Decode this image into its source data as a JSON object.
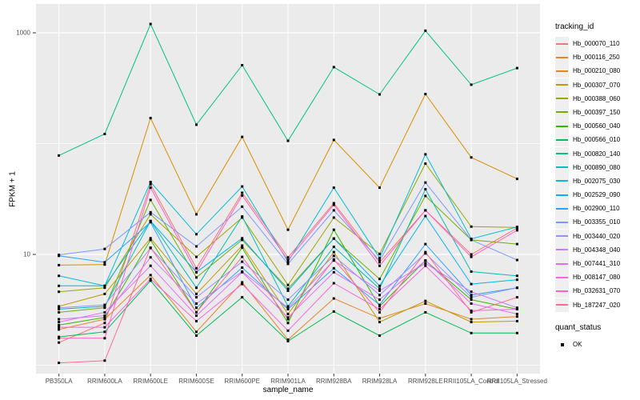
{
  "chart_data": {
    "type": "line",
    "xlabel": "sample_name",
    "ylabel": "FPKM + 1",
    "y_scale": "log10",
    "y_ticks": [
      10,
      1000
    ],
    "y_minor_gridlines": [
      1,
      100
    ],
    "ylim": [
      0.85,
      1600
    ],
    "grid": "major-and-minor, white on grey panel",
    "legend_position": "right",
    "point_marker": "small black square (quant_status OK)",
    "categories": [
      "PB350LA",
      "RRIM600LA",
      "RRIM600LE",
      "RRIM600SE",
      "RRIM600PE",
      "RRIM901LA",
      "RRIM928BA",
      "RRIM928LA",
      "RRIM928LE",
      "RRII105LA_Control",
      "RRII105LA_Stressed"
    ],
    "series": [
      {
        "name": "Hb_000070_110",
        "color": "#F8766D",
        "values": [
          1.6,
          2.4,
          43,
          7.5,
          36,
          9.4,
          29,
          8.5,
          25,
          10,
          17.3
        ]
      },
      {
        "name": "Hb_000116_250",
        "color": "#E88526",
        "values": [
          2.1,
          2.6,
          6.5,
          2.0,
          5.6,
          1.7,
          4.0,
          2.65,
          3.6,
          2.6,
          2.75
        ]
      },
      {
        "name": "Hb_000210_080",
        "color": "#D89000",
        "values": [
          8.0,
          8.1,
          170,
          23,
          115,
          16.7,
          108,
          40,
          280,
          75,
          48
        ]
      },
      {
        "name": "Hb_000307_070",
        "color": "#C09B00",
        "values": [
          3.4,
          4.4,
          14,
          4.4,
          12,
          2.9,
          10.5,
          2.45,
          3.8,
          2.45,
          2.5
        ]
      },
      {
        "name": "Hb_000388_060",
        "color": "#9DA700",
        "values": [
          4.6,
          5.0,
          23,
          9.5,
          21.5,
          5.3,
          21.5,
          10.1,
          66,
          17.8,
          17.5
        ]
      },
      {
        "name": "Hb_000397_150",
        "color": "#6FB000",
        "values": [
          3.0,
          3.3,
          31,
          6.2,
          13.5,
          4.9,
          13.9,
          6.0,
          33.7,
          13.5,
          12.4
        ]
      },
      {
        "name": "Hb_000560_040",
        "color": "#39B600",
        "values": [
          2.3,
          2.7,
          13.5,
          3.0,
          11.5,
          2.4,
          16.7,
          3.4,
          8.8,
          3.9,
          3.2
        ]
      },
      {
        "name": "Hb_000566_010",
        "color": "#00BC51",
        "values": [
          1.8,
          2.0,
          5.8,
          1.85,
          4.1,
          1.65,
          3.05,
          1.85,
          3.0,
          1.95,
          1.95
        ]
      },
      {
        "name": "Hb_000820_140",
        "color": "#00C087",
        "values": [
          78,
          122,
          1200,
          148,
          510,
          106,
          490,
          278,
          1045,
          340,
          480
        ]
      },
      {
        "name": "Hb_000890_080",
        "color": "#00C0B2",
        "values": [
          3.2,
          3.4,
          20,
          5.0,
          22,
          3.4,
          11.7,
          4.9,
          38.7,
          7.0,
          6.4
        ]
      },
      {
        "name": "Hb_002075_030",
        "color": "#00BCD8",
        "values": [
          6.4,
          5.2,
          45,
          15.2,
          41,
          8.6,
          40,
          9.3,
          80,
          13.8,
          17.7
        ]
      },
      {
        "name": "Hb_002529_090",
        "color": "#00B3F2",
        "values": [
          5.2,
          5.2,
          20,
          6.9,
          14,
          4.7,
          13.9,
          5.2,
          22.2,
          5.4,
          5.9
        ]
      },
      {
        "name": "Hb_002900_110",
        "color": "#29A3FF",
        "values": [
          9.7,
          8.5,
          19.5,
          3.3,
          7.6,
          3.2,
          7.5,
          3.5,
          12.4,
          4.3,
          5.0
        ]
      },
      {
        "name": "Hb_003355_010",
        "color": "#7C96FF",
        "values": [
          9.9,
          11.2,
          24,
          11.8,
          27,
          8.2,
          25,
          8.8,
          44.5,
          13.5,
          8.9
        ]
      },
      {
        "name": "Hb_003440_020",
        "color": "#9590FF",
        "values": [
          3.3,
          3.5,
          11.4,
          4.1,
          8.6,
          3.9,
          9.7,
          4.3,
          10.2,
          4.1,
          5.0
        ]
      },
      {
        "name": "Hb_004348_040",
        "color": "#C77CFF",
        "values": [
          2.6,
          2.8,
          9.4,
          3.6,
          7.0,
          3.3,
          8.8,
          4.7,
          8.3,
          4.6,
          3.3
        ]
      },
      {
        "name": "Hb_007441_310",
        "color": "#E36EF6",
        "values": [
          2.45,
          3.0,
          7.9,
          2.8,
          6.9,
          2.7,
          6.9,
          3.9,
          8.8,
          3.6,
          2.9
        ]
      },
      {
        "name": "Hb_008147_080",
        "color": "#F564E3",
        "values": [
          2.2,
          2.2,
          6.0,
          2.5,
          5.4,
          2.05,
          5.5,
          3.2,
          7.9,
          3.1,
          3.2
        ]
      },
      {
        "name": "Hb_032631_070",
        "color": "#FF61CC",
        "values": [
          1.75,
          1.75,
          40,
          6.9,
          34,
          8.9,
          28,
          7.9,
          25,
          9.5,
          16.5
        ]
      },
      {
        "name": "Hb_187247_020",
        "color": "#FF6B94",
        "values": [
          1.05,
          1.1,
          11.5,
          3.0,
          9.5,
          2.6,
          9.0,
          3.0,
          10.5,
          3.0,
          4.1
        ]
      }
    ]
  },
  "legend": {
    "tracking_title": "tracking_id",
    "quant_title": "quant_status",
    "quant_items": [
      "OK"
    ]
  },
  "colors": {
    "panel_bg": "#EBEBEB",
    "gridline": "#FFFFFF",
    "tick_mark": "#333333",
    "tick_text": "#4D4D4D",
    "point": "#000000",
    "legend_key_bg": "#EFEFEF"
  }
}
